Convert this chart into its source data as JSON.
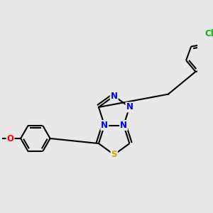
{
  "background_color": "#e8e8e8",
  "bond_color": "#000000",
  "atom_colors": {
    "N": "#0000ff",
    "S": "#ccaa00",
    "O": "#ff0000",
    "Cl": "#00bb00",
    "C": "#000000"
  },
  "figsize": [
    3.0,
    3.0
  ],
  "dpi": 100
}
